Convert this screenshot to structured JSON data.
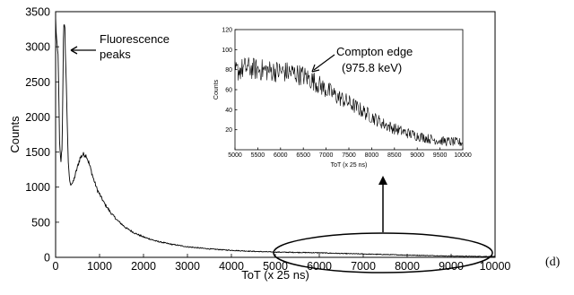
{
  "chart_data": [
    {
      "type": "line",
      "title": "",
      "xlabel": "ToT (x 25 ns)",
      "ylabel": "Counts",
      "xlim": [
        0,
        10000
      ],
      "ylim": [
        0,
        3500
      ],
      "xticks": [
        "0",
        "1000",
        "2000",
        "3000",
        "4000",
        "5000",
        "6000",
        "7000",
        "8000",
        "9000",
        "10000"
      ],
      "yticks": [
        "0",
        "500",
        "1000",
        "1500",
        "2000",
        "2500",
        "3000",
        "3500"
      ],
      "grid": false,
      "series": [
        {
          "color": "#000000",
          "points": [
            [
              0,
              3400
            ],
            [
              30,
              3000
            ],
            [
              60,
              2850
            ],
            [
              90,
              1600
            ],
            [
              120,
              1350
            ],
            [
              150,
              1600
            ],
            [
              180,
              3280
            ],
            [
              210,
              3250
            ],
            [
              250,
              2300
            ],
            [
              290,
              1300
            ],
            [
              330,
              1040
            ],
            [
              400,
              1070
            ],
            [
              480,
              1250
            ],
            [
              560,
              1420
            ],
            [
              630,
              1470
            ],
            [
              700,
              1450
            ],
            [
              780,
              1300
            ],
            [
              860,
              1120
            ],
            [
              950,
              960
            ],
            [
              1100,
              780
            ],
            [
              1250,
              640
            ],
            [
              1400,
              530
            ],
            [
              1600,
              420
            ],
            [
              1800,
              345
            ],
            [
              2000,
              290
            ],
            [
              2300,
              230
            ],
            [
              2600,
              190
            ],
            [
              3000,
              150
            ],
            [
              3500,
              120
            ],
            [
              4000,
              100
            ],
            [
              4500,
              85
            ],
            [
              5000,
              75
            ],
            [
              5500,
              70
            ],
            [
              6000,
              65
            ],
            [
              6500,
              55
            ],
            [
              7000,
              48
            ],
            [
              7500,
              40
            ],
            [
              8000,
              32
            ],
            [
              8500,
              25
            ],
            [
              9000,
              18
            ],
            [
              9500,
              14
            ],
            [
              10000,
              12
            ]
          ]
        }
      ],
      "annotations": [
        {
          "text_lines": [
            "Fluorescence",
            "peaks"
          ]
        },
        {
          "text": "(d)"
        }
      ]
    },
    {
      "type": "line",
      "title": "",
      "xlabel": "ToT (x 25 ns)",
      "ylabel": "Counts",
      "xlim": [
        5000,
        10000
      ],
      "ylim": [
        0,
        120
      ],
      "xticks": [
        "5000",
        "5500",
        "6000",
        "6500",
        "7000",
        "7500",
        "8000",
        "8500",
        "9000",
        "9500",
        "10000"
      ],
      "yticks": [
        "20",
        "40",
        "60",
        "80",
        "100",
        "120"
      ],
      "grid": false,
      "series": [
        {
          "color": "#000000",
          "points": [
            [
              5000,
              78
            ],
            [
              5250,
              82
            ],
            [
              5500,
              80
            ],
            [
              5750,
              79
            ],
            [
              6000,
              78
            ],
            [
              6250,
              77
            ],
            [
              6500,
              74
            ],
            [
              6750,
              68
            ],
            [
              7000,
              60
            ],
            [
              7250,
              53
            ],
            [
              7500,
              47
            ],
            [
              7750,
              40
            ],
            [
              8000,
              33
            ],
            [
              8250,
              26
            ],
            [
              8500,
              21
            ],
            [
              8750,
              17
            ],
            [
              9000,
              14
            ],
            [
              9250,
              11
            ],
            [
              9500,
              9
            ],
            [
              9750,
              8
            ],
            [
              10000,
              7
            ]
          ]
        }
      ],
      "annotations": [
        {
          "text_lines": [
            "Compton edge",
            "(975.8 keV)"
          ]
        }
      ]
    }
  ]
}
